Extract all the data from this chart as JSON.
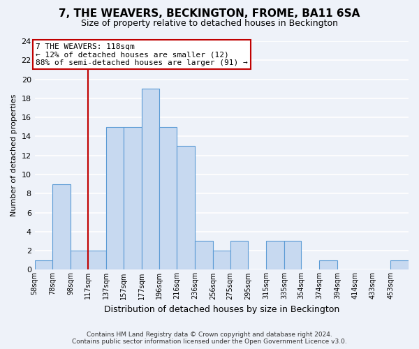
{
  "title": "7, THE WEAVERS, BECKINGTON, FROME, BA11 6SA",
  "subtitle": "Size of property relative to detached houses in Beckington",
  "xlabel": "Distribution of detached houses by size in Beckington",
  "ylabel": "Number of detached properties",
  "bin_labels": [
    "58sqm",
    "78sqm",
    "98sqm",
    "117sqm",
    "137sqm",
    "157sqm",
    "177sqm",
    "196sqm",
    "216sqm",
    "236sqm",
    "256sqm",
    "275sqm",
    "295sqm",
    "315sqm",
    "335sqm",
    "354sqm",
    "374sqm",
    "394sqm",
    "414sqm",
    "433sqm",
    "453sqm"
  ],
  "bar_values": [
    1,
    9,
    2,
    2,
    15,
    15,
    19,
    15,
    13,
    3,
    2,
    3,
    0,
    3,
    3,
    0,
    1,
    0,
    0,
    0,
    1
  ],
  "bin_edges": [
    58,
    78,
    98,
    117,
    137,
    157,
    177,
    196,
    216,
    236,
    256,
    275,
    295,
    315,
    335,
    354,
    374,
    394,
    414,
    433,
    453,
    473
  ],
  "bar_color": "#c7d9f0",
  "bar_edge_color": "#5b9bd5",
  "vline_x": 117,
  "vline_color": "#c00000",
  "annotation_line1": "7 THE WEAVERS: 118sqm",
  "annotation_line2": "← 12% of detached houses are smaller (12)",
  "annotation_line3": "88% of semi-detached houses are larger (91) →",
  "annotation_box_color": "#ffffff",
  "annotation_box_edge": "#c00000",
  "ylim": [
    0,
    24
  ],
  "yticks": [
    0,
    2,
    4,
    6,
    8,
    10,
    12,
    14,
    16,
    18,
    20,
    22,
    24
  ],
  "footer_line1": "Contains HM Land Registry data © Crown copyright and database right 2024.",
  "footer_line2": "Contains public sector information licensed under the Open Government Licence v3.0.",
  "background_color": "#eef2f9",
  "grid_color": "#ffffff",
  "title_fontsize": 11,
  "subtitle_fontsize": 9,
  "ylabel_fontsize": 8,
  "xlabel_fontsize": 9,
  "tick_fontsize": 7,
  "annotation_fontsize": 8
}
